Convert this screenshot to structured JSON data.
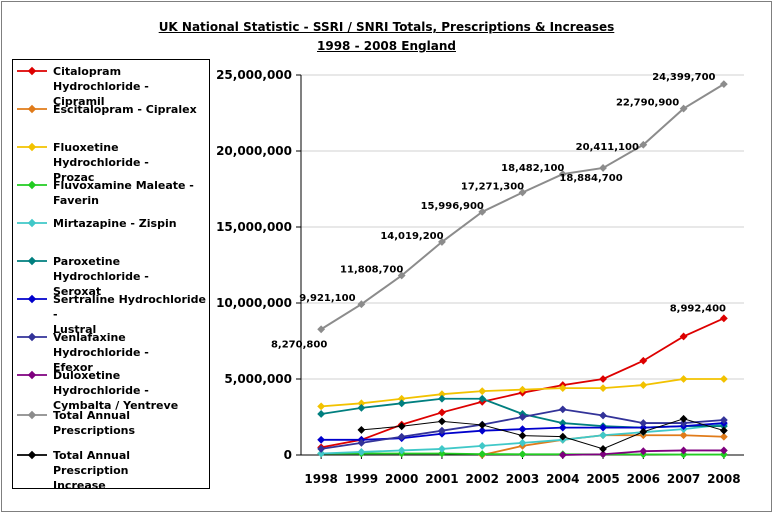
{
  "title_line1": "UK National Statistic - SSRI / SNRI Totals, Prescriptions & Increases",
  "title_line2": "1998 - 2008 England",
  "legend_lines": [
    [
      "Citalopram Hydrochloride -",
      "Cipramil"
    ],
    [
      "Escitalopram - Cipralex",
      ""
    ],
    [
      "Fluoxetine Hydrochloride -",
      "Prozac"
    ],
    [
      "Fluvoxamine Maleate -",
      "Faverin"
    ],
    [
      "Mirtazapine - Zispin",
      ""
    ],
    [
      "Paroxetine Hydrochloride -",
      "Seroxat"
    ],
    [
      "Sertraline Hydrochloride -",
      "Lustral"
    ],
    [
      "Venlafaxine Hydrochloride -",
      "Efexor"
    ],
    [
      "Duloxetine Hydrochloride -",
      "Cymbalta / Yentreve"
    ],
    [
      "Total Annual Prescriptions",
      ""
    ],
    [
      "Total Annual Prescription",
      "Increase"
    ]
  ],
  "chart_data": {
    "type": "line",
    "title": "UK National Statistic - SSRI / SNRI Totals, Prescriptions & Increases",
    "subtitle": "1998 - 2008 England",
    "xlabel": "",
    "ylabel": "",
    "categories": [
      "1998",
      "1999",
      "2000",
      "2001",
      "2002",
      "2003",
      "2004",
      "2005",
      "2006",
      "2007",
      "2008"
    ],
    "ylim": [
      0,
      25000000
    ],
    "yticks": [
      "0",
      "5,000,000",
      "10,000,000",
      "15,000,000",
      "20,000,000",
      "25,000,000"
    ],
    "grid": "horizontal",
    "legend_position": "left",
    "series": [
      {
        "name": "Citalopram Hydrochloride - Cipramil",
        "color": "#dd0000",
        "values": [
          500000,
          1000000,
          2000000,
          2800000,
          3500000,
          4100000,
          4600000,
          5000000,
          6200000,
          7800000,
          8992400
        ]
      },
      {
        "name": "Escitalopram - Cipralex",
        "color": "#e07b1a",
        "values": [
          null,
          null,
          null,
          null,
          0,
          600000,
          1000000,
          1300000,
          1300000,
          1300000,
          1200000
        ]
      },
      {
        "name": "Fluoxetine Hydrochloride - Prozac",
        "color": "#f2c200",
        "values": [
          3200000,
          3400000,
          3700000,
          4000000,
          4200000,
          4300000,
          4400000,
          4400000,
          4600000,
          5000000,
          5000000
        ]
      },
      {
        "name": "Fluvoxamine Maleate - Faverin",
        "color": "#22cc22",
        "values": [
          100000,
          100000,
          100000,
          100000,
          60000,
          50000,
          50000,
          40000,
          40000,
          30000,
          30000
        ]
      },
      {
        "name": "Mirtazapine - Zispin",
        "color": "#40c8c8",
        "values": [
          100000,
          200000,
          300000,
          400000,
          600000,
          800000,
          1000000,
          1300000,
          1500000,
          1700000,
          2000000
        ]
      },
      {
        "name": "Paroxetine Hydrochloride - Seroxat",
        "color": "#007f7f",
        "values": [
          2700000,
          3100000,
          3400000,
          3700000,
          3700000,
          2700000,
          2100000,
          1900000,
          1800000,
          1900000,
          1900000
        ]
      },
      {
        "name": "Sertraline Hydrochloride - Lustral",
        "color": "#0000cc",
        "values": [
          1000000,
          1000000,
          1100000,
          1400000,
          1600000,
          1700000,
          1800000,
          1800000,
          1800000,
          1900000,
          2100000
        ]
      },
      {
        "name": "Venlafaxine Hydrochloride - Efexor",
        "color": "#333399",
        "values": [
          400000,
          800000,
          1200000,
          1600000,
          2000000,
          2500000,
          3000000,
          2600000,
          2100000,
          2100000,
          2300000
        ]
      },
      {
        "name": "Duloxetine Hydrochloride - Cymbalta / Yentreve",
        "color": "#7f007f",
        "values": [
          null,
          null,
          null,
          null,
          null,
          null,
          0,
          50000,
          250000,
          300000,
          300000
        ]
      },
      {
        "name": "Total Annual Prescriptions",
        "color": "#8c8c8c",
        "values": [
          8270800,
          9921100,
          11808700,
          14019200,
          15996900,
          17271300,
          18482100,
          18884700,
          20411100,
          22790900,
          24399700
        ],
        "data_labels": [
          "8,270,800",
          "9,921,100",
          "11,808,700",
          "14,019,200",
          "15,996,900",
          "17,271,300",
          "18,482,100",
          "18,884,700",
          "20,411,100",
          "22,790,900",
          "24,399,700"
        ]
      },
      {
        "name": "Total Annual Prescription Increase",
        "color": "#000000",
        "values": [
          null,
          1650300,
          1887600,
          2210500,
          1977700,
          1274400,
          1210800,
          402600,
          1526400,
          2379800,
          1608800
        ]
      }
    ],
    "highlight_labels": [
      {
        "series": 0,
        "index": 10,
        "text": "8,992,400"
      }
    ]
  }
}
